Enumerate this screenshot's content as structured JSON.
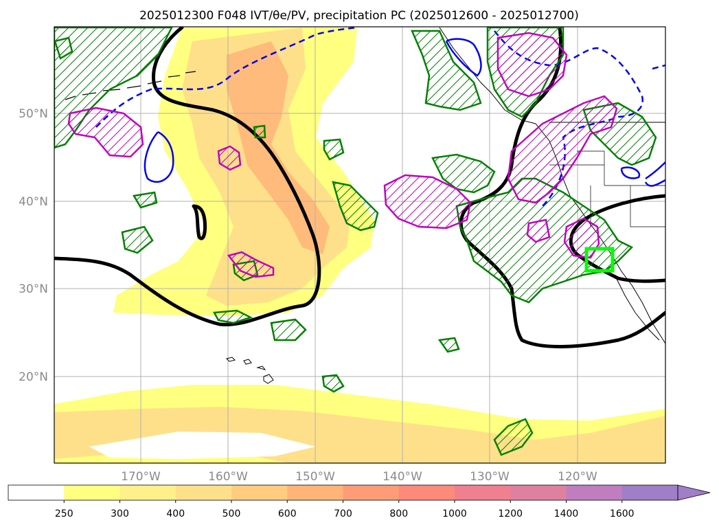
{
  "title": "2025012300 F048 IVT/θe/PV, precipitation PC (2025012600 - 2025012700)",
  "map": {
    "lat_labels": [
      "50°N",
      "40°N",
      "30°N",
      "20°N"
    ],
    "lon_labels": [
      "170°W",
      "160°W",
      "150°W",
      "140°W",
      "130°W",
      "120°W"
    ]
  },
  "colorbar": {
    "levels": [
      "250",
      "300",
      "400",
      "500",
      "600",
      "700",
      "800",
      "1000",
      "1200",
      "1400",
      "1600"
    ],
    "colors": [
      "#ffffff",
      "#ffff80",
      "#fff08a",
      "#ffe08a",
      "#ffcc80",
      "#ffb478",
      "#ff9c78",
      "#ff8a7a",
      "#f08090",
      "#e080a0",
      "#c07ec0",
      "#a07ec8"
    ],
    "extend": "max"
  },
  "legend_colors": {
    "thetae_contour": "#000000",
    "pv_contour": "#0000ee",
    "precip_pc_green": "#008000",
    "precip_pc_magenta": "#c000c0",
    "target_box": "#00ff00"
  }
}
